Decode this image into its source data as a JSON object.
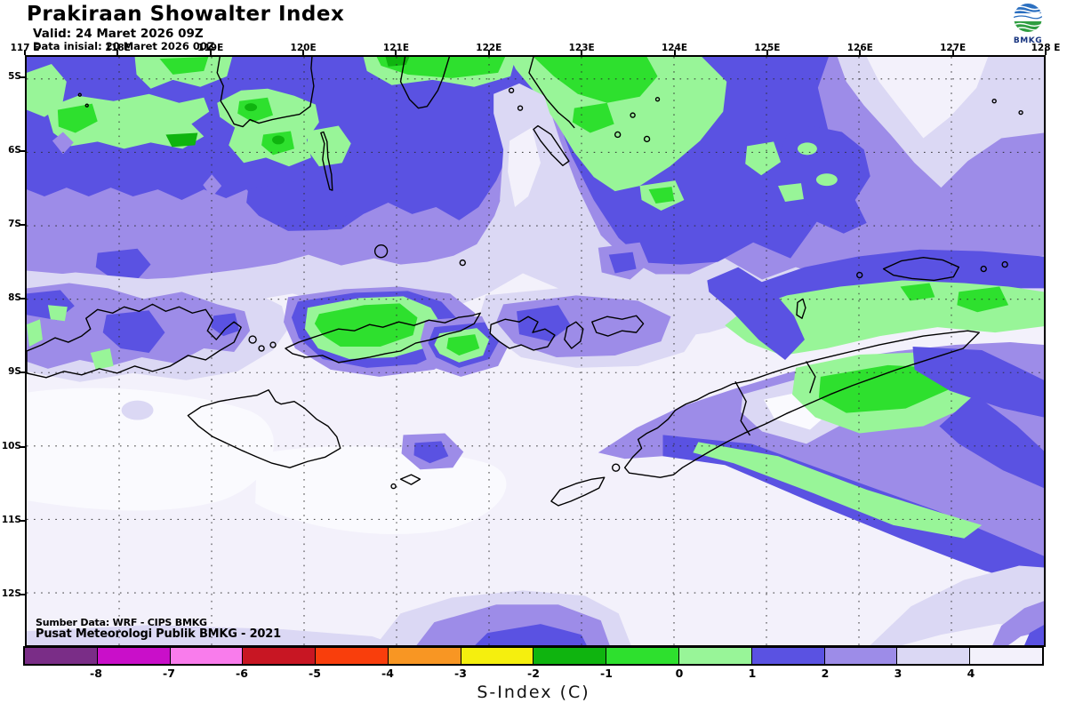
{
  "header": {
    "title": "Prakiraan Showalter Index",
    "valid_line": "Valid: 24 Maret 2026 09Z",
    "init_line": "Data inisial: 20 Maret 2026 00Z",
    "logo_label": "BMKG"
  },
  "map": {
    "lon_labels": [
      "117 E",
      "118E",
      "119E",
      "120E",
      "121E",
      "122E",
      "123E",
      "124E",
      "125E",
      "126E",
      "127E",
      "128 E"
    ],
    "lat_labels": [
      "5S",
      "6S",
      "7S",
      "8S",
      "9S",
      "10S",
      "11S",
      "12S"
    ],
    "credit_line1": "Sumber Data: WRF - CIPS BMKG",
    "credit_line2": "Pusat Meteorologi Publik BMKG - 2021"
  },
  "legend": {
    "title": "S-Index (C)",
    "tick_labels": [
      "-8",
      "-7",
      "-6",
      "-5",
      "-4",
      "-3",
      "-2",
      "-1",
      "0",
      "1",
      "2",
      "3",
      "4"
    ],
    "colors": [
      "#7A2D87",
      "#C90FC9",
      "#F97CEC",
      "#C81623",
      "#F93E0C",
      "#F89623",
      "#F5EF0E",
      "#0FB40F",
      "#2EE02E",
      "#98F598",
      "#5A52E2",
      "#9D8CE8",
      "#DBD8F4",
      "#F3F1FB"
    ]
  },
  "logo_colors": {
    "sky_blue": "#2B6FC0",
    "land_green": "#2F9E41",
    "text_navy": "#16337F"
  }
}
